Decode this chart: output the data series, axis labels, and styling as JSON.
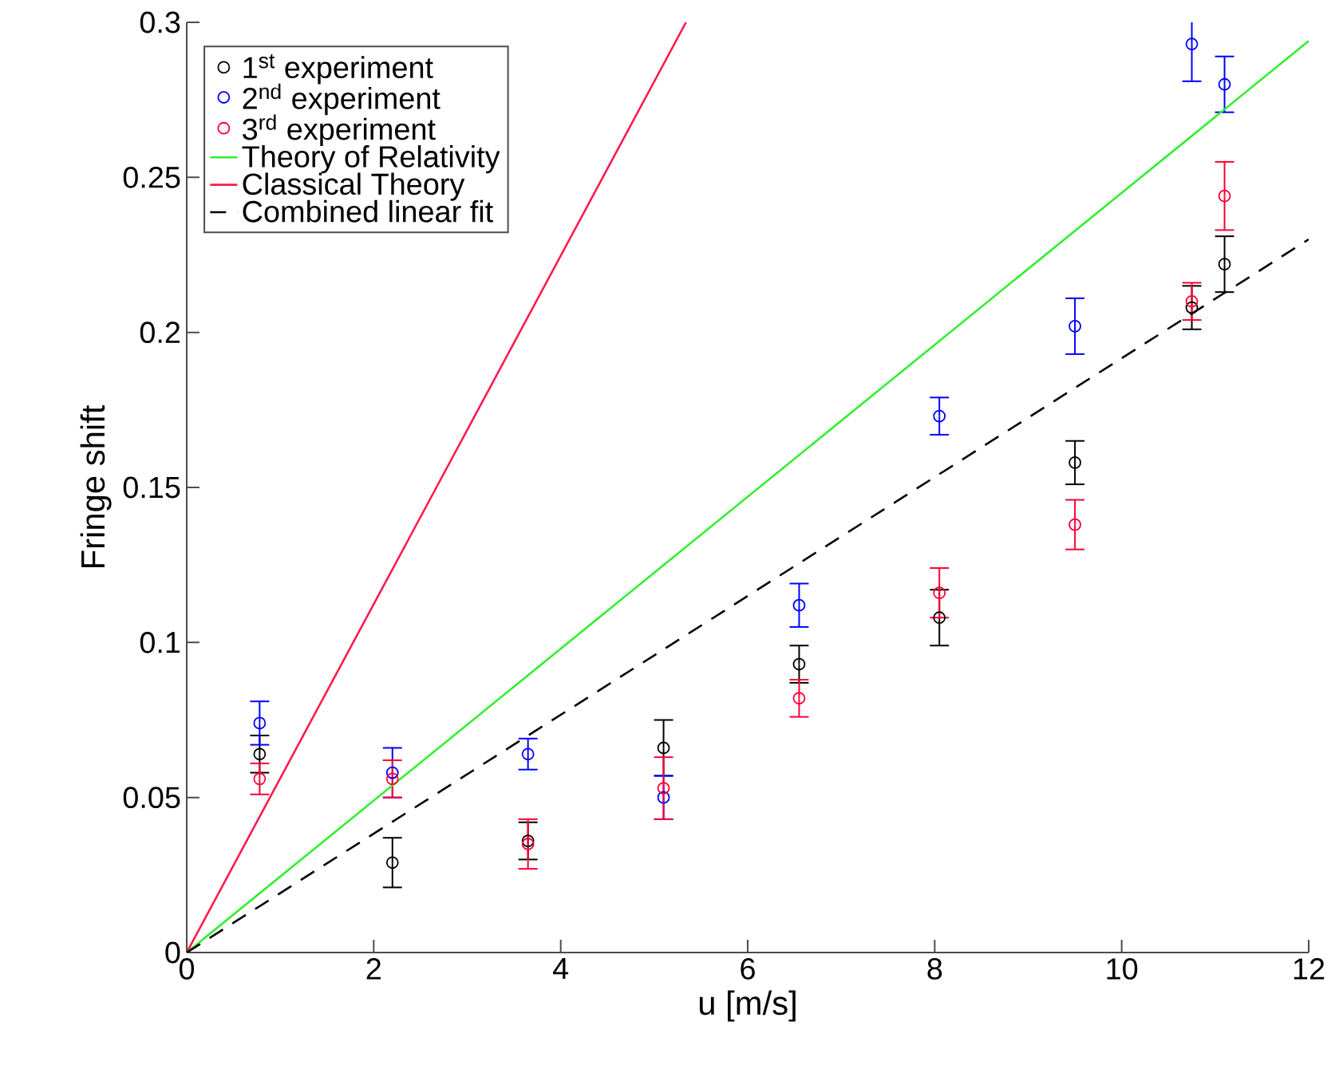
{
  "chart_data": {
    "type": "scatter",
    "xlabel": "u [m/s]",
    "ylabel": "Fringe shift",
    "xlim": [
      0,
      12
    ],
    "ylim": [
      0,
      0.3
    ],
    "xticks": [
      0,
      2,
      4,
      6,
      8,
      10,
      12
    ],
    "yticks": [
      0,
      0.05,
      0.1,
      0.15,
      0.2,
      0.25,
      0.3
    ],
    "x": [
      0.78,
      2.2,
      3.65,
      5.1,
      6.55,
      8.05,
      9.5,
      10.75,
      11.1
    ],
    "marker": "circle",
    "legend": "top left",
    "grid": false,
    "series": [
      {
        "name": "1$^{st}$ experiment",
        "color": "#000000",
        "values": [
          0.064,
          0.029,
          0.036,
          0.066,
          0.093,
          0.108,
          0.158,
          0.208,
          0.222
        ],
        "errors": [
          0.006,
          0.008,
          0.006,
          0.009,
          0.006,
          0.009,
          0.007,
          0.007,
          0.009
        ]
      },
      {
        "name": "2$^{nd}$ experiment",
        "color": "#0000ff",
        "values": [
          0.074,
          0.058,
          0.064,
          0.05,
          0.112,
          0.173,
          0.202,
          0.293,
          0.28
        ],
        "errors": [
          0.007,
          0.008,
          0.005,
          0.007,
          0.007,
          0.006,
          0.009,
          0.012,
          0.009
        ]
      },
      {
        "name": "3$^{rd}$ experiment",
        "color": "#ff0033",
        "values": [
          0.056,
          0.056,
          0.035,
          0.053,
          0.082,
          0.116,
          0.138,
          0.21,
          0.244
        ],
        "errors": [
          0.005,
          0.006,
          0.008,
          0.01,
          0.006,
          0.008,
          0.008,
          0.006,
          0.011
        ]
      },
      {
        "name": "Theory of Relativity",
        "type": "line",
        "color": "#33ee33",
        "line_style": "solid",
        "marker": "none",
        "x": [
          0,
          12
        ],
        "values": [
          0,
          0.294
        ]
      },
      {
        "name": "Classical Theory",
        "type": "line",
        "color": "#ff1a4d",
        "line_style": "solid",
        "marker": "none",
        "x": [
          0,
          5.34
        ],
        "values": [
          0,
          0.3
        ]
      },
      {
        "name": "Combined linear fit",
        "type": "line",
        "color": "#000000",
        "line_style": "dashed",
        "marker": "none",
        "x": [
          0,
          12
        ],
        "values": [
          0,
          0.23
        ]
      }
    ]
  }
}
